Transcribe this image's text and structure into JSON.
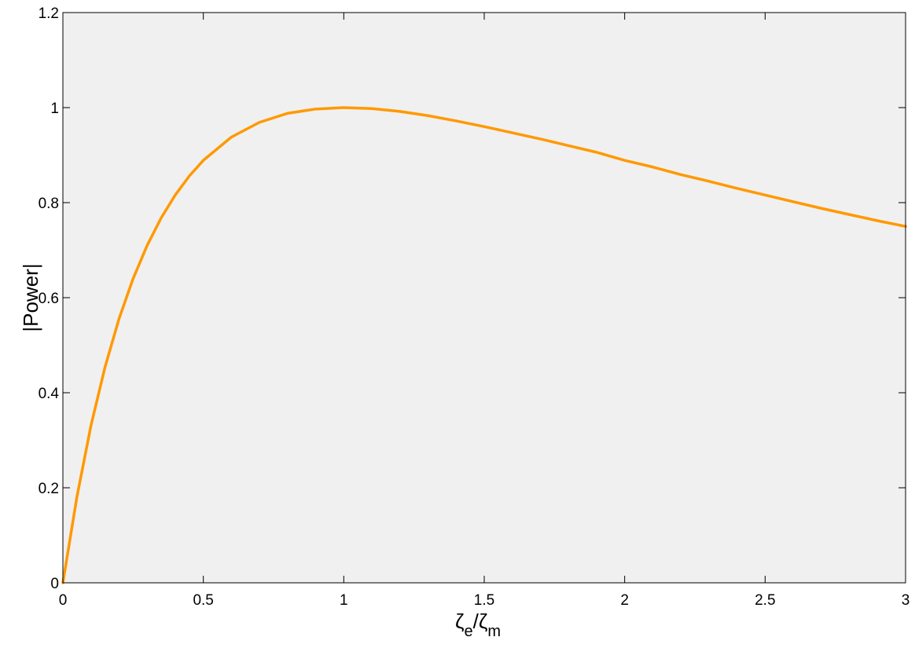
{
  "chart_data": {
    "type": "line",
    "xlabel": {
      "base1": "ζ",
      "sub1": "e",
      "mid": "/",
      "base2": "ζ",
      "sub2": "m"
    },
    "ylabel": "|Power|",
    "xlim": [
      0,
      3
    ],
    "ylim": [
      0,
      1.2
    ],
    "xticks": [
      0,
      0.5,
      1,
      1.5,
      2,
      2.5,
      3
    ],
    "xtick_labels": [
      "0",
      "0.5",
      "1",
      "1.5",
      "2",
      "2.5",
      "3"
    ],
    "yticks": [
      0,
      0.2,
      0.4,
      0.6,
      0.8,
      1.0,
      1.2
    ],
    "ytick_labels": [
      "0",
      "0.2",
      "0.4",
      "0.6",
      "0.8",
      "1",
      "1.2"
    ],
    "grid": false,
    "series": [
      {
        "color": "#ff9900",
        "x": [
          0,
          0.05,
          0.1,
          0.15,
          0.2,
          0.25,
          0.3,
          0.35,
          0.4,
          0.45,
          0.5,
          0.6,
          0.7,
          0.8,
          0.9,
          1.0,
          1.1,
          1.2,
          1.3,
          1.4,
          1.5,
          1.6,
          1.7,
          1.8,
          1.9,
          2.0,
          2.1,
          2.2,
          2.3,
          2.4,
          2.5,
          2.6,
          2.7,
          2.8,
          2.9,
          3.0
        ],
        "y": [
          0,
          0.181,
          0.331,
          0.454,
          0.556,
          0.64,
          0.71,
          0.768,
          0.816,
          0.856,
          0.889,
          0.938,
          0.969,
          0.988,
          0.997,
          1.0,
          0.998,
          0.992,
          0.983,
          0.972,
          0.96,
          0.947,
          0.934,
          0.92,
          0.906,
          0.889,
          0.875,
          0.859,
          0.845,
          0.83,
          0.816,
          0.802,
          0.788,
          0.775,
          0.762,
          0.75
        ]
      }
    ]
  },
  "colors": {
    "plot_background": "#f0f0f0",
    "axis": "#000000",
    "line": "#ff9900"
  }
}
